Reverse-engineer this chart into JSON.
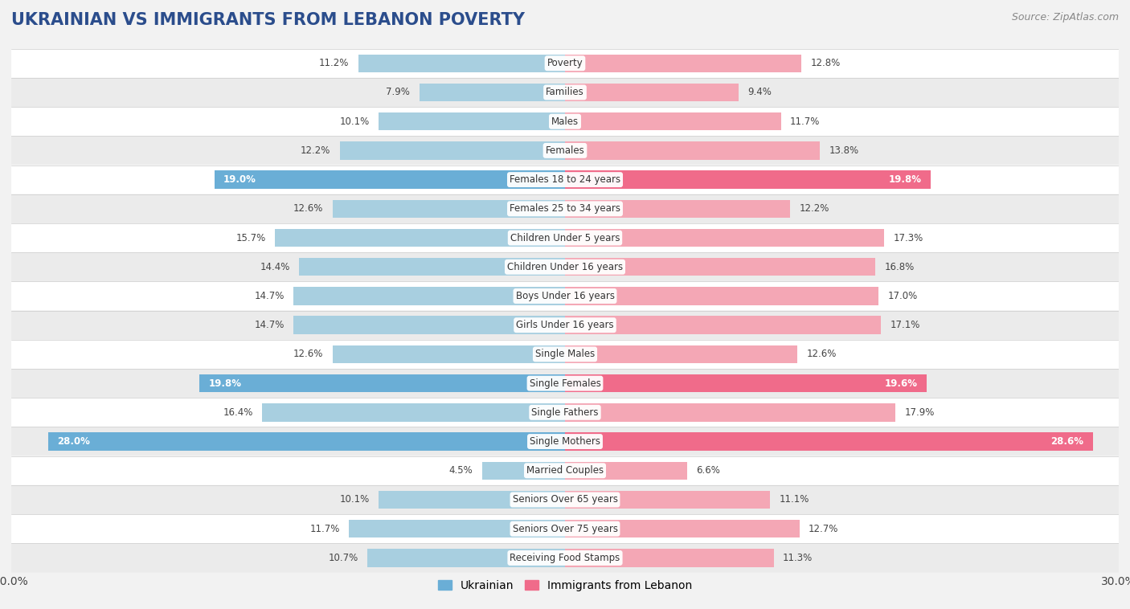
{
  "title": "UKRAINIAN VS IMMIGRANTS FROM LEBANON POVERTY",
  "source": "Source: ZipAtlas.com",
  "categories": [
    "Poverty",
    "Families",
    "Males",
    "Females",
    "Females 18 to 24 years",
    "Females 25 to 34 years",
    "Children Under 5 years",
    "Children Under 16 years",
    "Boys Under 16 years",
    "Girls Under 16 years",
    "Single Males",
    "Single Females",
    "Single Fathers",
    "Single Mothers",
    "Married Couples",
    "Seniors Over 65 years",
    "Seniors Over 75 years",
    "Receiving Food Stamps"
  ],
  "ukrainian": [
    11.2,
    7.9,
    10.1,
    12.2,
    19.0,
    12.6,
    15.7,
    14.4,
    14.7,
    14.7,
    12.6,
    19.8,
    16.4,
    28.0,
    4.5,
    10.1,
    11.7,
    10.7
  ],
  "lebanon": [
    12.8,
    9.4,
    11.7,
    13.8,
    19.8,
    12.2,
    17.3,
    16.8,
    17.0,
    17.1,
    12.6,
    19.6,
    17.9,
    28.6,
    6.6,
    11.1,
    12.7,
    11.3
  ],
  "ukrainian_color_normal": "#a8cfe0",
  "ukrainian_color_highlight": "#6aaed6",
  "lebanon_color_normal": "#f4a7b5",
  "lebanon_color_highlight": "#f06b8a",
  "highlight_rows": [
    4,
    11,
    13
  ],
  "background_color": "#f2f2f2",
  "row_colors": [
    "#ffffff",
    "#ebebeb"
  ],
  "max_val": 30.0,
  "bar_height": 0.62,
  "title_fontsize": 15,
  "source_fontsize": 9,
  "cat_fontsize": 8.5,
  "val_fontsize": 8.5
}
